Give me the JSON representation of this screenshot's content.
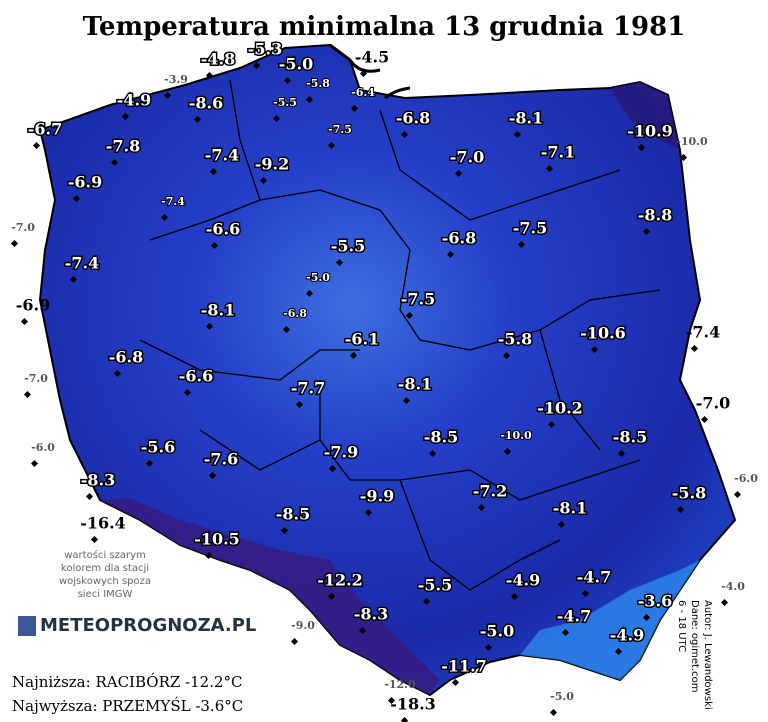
{
  "title": "Temperatura minimalna 13 grudnia 1981",
  "stations": [
    "-5.3",
    "-4.8",
    "-5.0",
    "-4.5",
    "-3.9",
    "-5.8",
    "-6.4",
    "-4.9",
    "-8.6",
    "-5.5",
    "-6.8",
    "-8.1",
    "-6.7",
    "-7.5",
    "-10.9",
    "-10.0",
    "-7.8",
    "-7.4",
    "-7.0",
    "-7.1",
    "-9.2",
    "-6.9",
    "-7.4",
    "-8.8",
    "-7.0",
    "-6.6",
    "-6.8",
    "-7.5",
    "-5.5",
    "-7.4",
    "-5.0",
    "-6.9",
    "-8.1",
    "-7.5",
    "-6.8",
    "-10.6",
    "-7.4",
    "-6.1",
    "-5.8",
    "-6.8",
    "-7.0",
    "-6.6",
    "-7.7",
    "-8.1",
    "-7.0",
    "-10.2",
    "-10.0",
    "-8.5",
    "-8.5",
    "-6.0",
    "-5.6",
    "-7.6",
    "-7.9",
    "-6.0",
    "-8.3",
    "-7.2",
    "-5.8",
    "-9.9",
    "-8.1",
    "-16.4",
    "-8.5",
    "-10.5",
    "-12.2",
    "-5.5",
    "-4.9",
    "-4.7",
    "-4.0",
    "-3.6",
    "-8.3",
    "-4.7",
    "-9.0",
    "-5.0",
    "-4.9",
    "-11.7",
    "-12.0",
    "-18.3",
    "-5.0"
  ],
  "note": [
    "wartości szarym",
    "kolorem dla stacji",
    "wojskowych spoza",
    "sieci IMGW"
  ],
  "logo": "METEOPROGNOZA.PL",
  "lowest": "Najniższa: RACIBÓRZ -12.2°C",
  "highest": "Najwyższa: PRZEMYŚL -3.6°C",
  "credits": [
    "Autor: J. Lewandowski",
    "Dane: ogimet.com",
    "6 - 18 UTC"
  ]
}
